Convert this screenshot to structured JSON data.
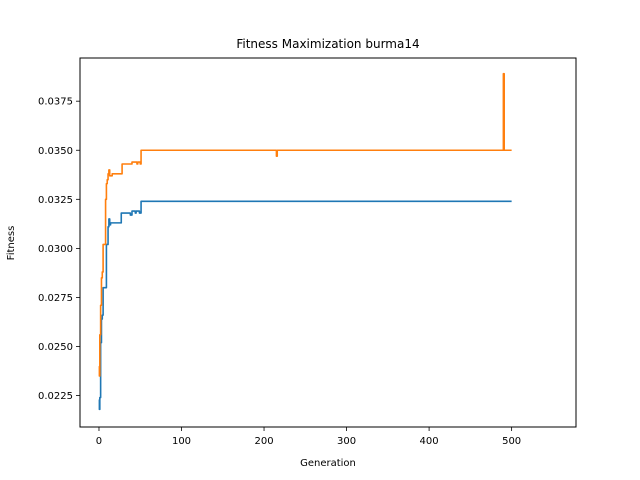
{
  "chart_data": {
    "type": "line",
    "title": "Fitness Maximization burma14",
    "xlabel": "Generation",
    "ylabel": "Fitness",
    "xlim": [
      -23,
      578
    ],
    "ylim": [
      0.0209,
      0.0397
    ],
    "xticks": [
      0,
      100,
      200,
      300,
      400,
      500
    ],
    "yticks": [
      0.0225,
      0.025,
      0.0275,
      0.03,
      0.0325,
      0.035,
      0.0375
    ],
    "ytick_labels": [
      "0.0225",
      "0.0250",
      "0.0275",
      "0.0300",
      "0.0325",
      "0.0350",
      "0.0375"
    ],
    "grid": false,
    "legend": "none",
    "series": [
      {
        "color": "#1f77b4",
        "x": [
          0,
          0.5,
          0.5,
          1,
          1,
          2,
          2,
          3,
          3,
          4,
          4,
          5,
          5,
          6,
          6,
          9,
          9,
          11,
          11,
          12,
          12,
          13,
          13,
          14,
          14,
          27,
          27,
          37,
          37,
          38,
          38,
          40,
          40,
          44,
          44,
          45,
          45,
          49,
          49,
          51,
          51,
          52,
          52,
          500
        ],
        "y": [
          0.0223,
          0.0223,
          0.0218,
          0.0218,
          0.0224,
          0.0224,
          0.0252,
          0.0252,
          0.0264,
          0.0264,
          0.0266,
          0.0266,
          0.028,
          0.028,
          0.028,
          0.028,
          0.0302,
          0.0302,
          0.0311,
          0.0311,
          0.0315,
          0.0315,
          0.0312,
          0.0312,
          0.0313,
          0.0313,
          0.0318,
          0.0318,
          0.0318,
          0.0318,
          0.0317,
          0.0317,
          0.0319,
          0.0319,
          0.0318,
          0.0318,
          0.0319,
          0.0319,
          0.0318,
          0.0318,
          0.0324,
          0.0324,
          0.0324,
          0.0324
        ]
      },
      {
        "color": "#ff7f0e",
        "x": [
          0,
          0.5,
          0.5,
          1,
          1,
          2,
          2,
          3,
          3,
          4,
          4,
          5,
          5,
          6,
          6,
          7,
          7,
          8,
          8,
          9,
          9,
          10,
          10,
          11,
          11,
          12,
          12,
          13,
          13,
          16,
          16,
          28,
          28,
          29,
          29,
          40,
          40,
          44,
          44,
          46,
          46,
          47,
          47,
          50,
          50,
          51,
          51,
          52,
          52,
          215,
          215,
          216,
          216,
          217,
          217,
          490,
          490,
          491,
          491,
          492,
          492,
          500
        ],
        "y": [
          0.024,
          0.024,
          0.0235,
          0.0235,
          0.0256,
          0.0256,
          0.0271,
          0.0271,
          0.0285,
          0.0285,
          0.0288,
          0.0288,
          0.0302,
          0.0302,
          0.0302,
          0.0302,
          0.0302,
          0.0302,
          0.0325,
          0.0325,
          0.0333,
          0.0333,
          0.0335,
          0.0335,
          0.0338,
          0.0338,
          0.034,
          0.034,
          0.0337,
          0.0337,
          0.0338,
          0.0338,
          0.0343,
          0.0343,
          0.0343,
          0.0343,
          0.0344,
          0.0344,
          0.0344,
          0.0344,
          0.0343,
          0.0343,
          0.0344,
          0.0344,
          0.0343,
          0.0343,
          0.035,
          0.035,
          0.035,
          0.035,
          0.0347,
          0.0347,
          0.035,
          0.035,
          0.035,
          0.035,
          0.0389,
          0.0389,
          0.035,
          0.035,
          0.035,
          0.035
        ]
      }
    ]
  }
}
